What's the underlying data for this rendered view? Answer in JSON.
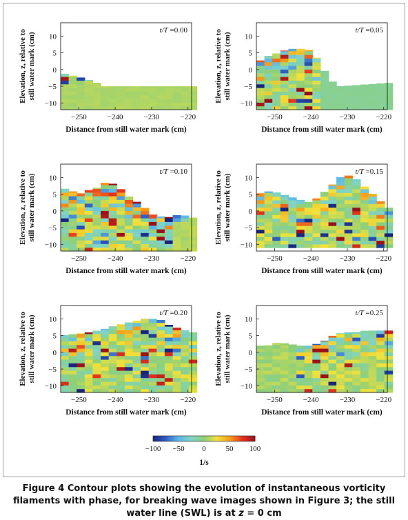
{
  "figure": {
    "caption_label": "Figure 4",
    "caption_text_1": "Contour plots showing the evolution of instantaneous vorticity filaments with phase, for breaking wave images shown in Figure 3; the still water line (SWL) is at ",
    "caption_var": "z",
    "caption_text_2": " = 0 cm"
  },
  "colorbar": {
    "ticks": [
      "−100",
      "−50",
      "0",
      "50",
      "100"
    ],
    "unit": "1/s",
    "colors": [
      "#1a237e",
      "#2e5fc7",
      "#5fb8e6",
      "#7fd4c8",
      "#8ccf7a",
      "#f2e23a",
      "#f7a11c",
      "#e8331c",
      "#9a0f1a"
    ]
  },
  "chart_data": [
    {
      "type": "heatmap",
      "phase_label": "t/T = 0.00",
      "xlabel": "Distance from still water mark (cm)",
      "ylabel": "Elevation, z, relative to still water mark (cm)",
      "xlim": [
        -255,
        -219
      ],
      "ylim": [
        -12,
        14
      ],
      "xticks": [
        -250,
        -240,
        -230,
        -220
      ],
      "yticks": [
        10,
        5,
        0,
        -5,
        -10
      ],
      "value_range": [
        -100,
        100
      ]
    },
    {
      "type": "heatmap",
      "phase_label": "t/T = 0.05",
      "xlabel": "Distance from still water mark (cm)",
      "ylabel": "Elevation, z, relative to still water mark (cm)",
      "xlim": [
        -255,
        -219
      ],
      "ylim": [
        -12,
        14
      ],
      "xticks": [
        -250,
        -240,
        -230,
        -220
      ],
      "yticks": [
        10,
        5,
        0,
        -5,
        -10
      ],
      "value_range": [
        -100,
        100
      ]
    },
    {
      "type": "heatmap",
      "phase_label": "t/T = 0.10",
      "xlabel": "Distance from still water mark (cm)",
      "ylabel": "Elevation, z, relative to still water mark (cm)",
      "xlim": [
        -255,
        -219
      ],
      "ylim": [
        -12,
        14
      ],
      "xticks": [
        -250,
        -240,
        -230,
        -220
      ],
      "yticks": [
        10,
        5,
        0,
        -5,
        -10
      ],
      "value_range": [
        -100,
        100
      ]
    },
    {
      "type": "heatmap",
      "phase_label": "t/T = 0.15",
      "xlabel": "Distance from still water mark (cm)",
      "ylabel": "Elevation, z, relative to still water mark (cm)",
      "xlim": [
        -255,
        -219
      ],
      "ylim": [
        -12,
        14
      ],
      "xticks": [
        -250,
        -240,
        -230,
        -220
      ],
      "yticks": [
        10,
        5,
        0,
        -5,
        -10
      ],
      "value_range": [
        -100,
        100
      ]
    },
    {
      "type": "heatmap",
      "phase_label": "t/T = 0.20",
      "xlabel": "Distance from still water mark (cm)",
      "ylabel": "Elevation, z, relative to still water mark (cm)",
      "xlim": [
        -255,
        -219
      ],
      "ylim": [
        -12,
        14
      ],
      "xticks": [
        -250,
        -240,
        -230,
        -220
      ],
      "yticks": [
        10,
        5,
        0,
        -5,
        -10
      ],
      "value_range": [
        -100,
        100
      ]
    },
    {
      "type": "heatmap",
      "phase_label": "t/T = 0.25",
      "xlabel": "Distance from still water mark (cm)",
      "ylabel": "Elevation, z, relative to still water mark (cm)",
      "xlim": [
        -255,
        -219
      ],
      "ylim": [
        -12,
        14
      ],
      "xticks": [
        -250,
        -240,
        -230,
        -220
      ],
      "yticks": [
        10,
        5,
        0,
        -5,
        -10
      ],
      "value_range": [
        -100,
        100
      ]
    }
  ]
}
